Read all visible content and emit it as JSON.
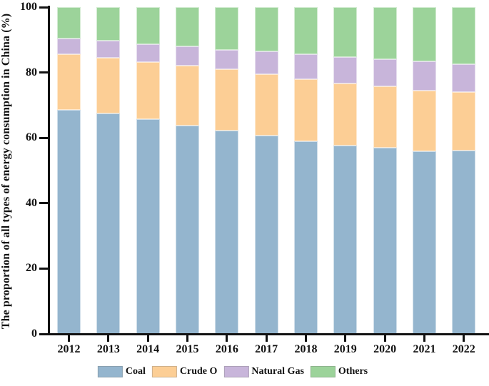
{
  "chart_data": {
    "type": "bar",
    "stacked": true,
    "title": "",
    "xlabel": "",
    "ylabel": "The proportion of all types of energy consumption in China (%)",
    "ylim": [
      0,
      100
    ],
    "yticks": [
      0,
      20,
      40,
      60,
      80,
      100
    ],
    "grid": false,
    "legend_position": "bottom",
    "axis_color": "#111111",
    "categories": [
      "2012",
      "2013",
      "2014",
      "2015",
      "2016",
      "2017",
      "2018",
      "2019",
      "2020",
      "2021",
      "2022"
    ],
    "series": [
      {
        "name": "Coal",
        "color": "#94B5CE",
        "values": [
          68.5,
          67.4,
          65.8,
          63.8,
          62.2,
          60.6,
          59.0,
          57.7,
          56.9,
          56.0,
          56.2
        ]
      },
      {
        "name": "Crude O",
        "color": "#FCCE95",
        "values": [
          17.0,
          17.1,
          17.3,
          18.4,
          18.7,
          18.9,
          18.9,
          19.0,
          18.8,
          18.5,
          17.9
        ]
      },
      {
        "name": "Natural Gas",
        "color": "#C8B5DA",
        "values": [
          4.8,
          5.3,
          5.6,
          5.8,
          6.1,
          6.9,
          7.6,
          8.0,
          8.4,
          8.9,
          8.4
        ]
      },
      {
        "name": "Others",
        "color": "#9CD39A",
        "values": [
          9.7,
          10.2,
          11.3,
          12.0,
          13.0,
          13.6,
          14.5,
          15.3,
          15.9,
          16.6,
          17.5
        ]
      }
    ]
  }
}
